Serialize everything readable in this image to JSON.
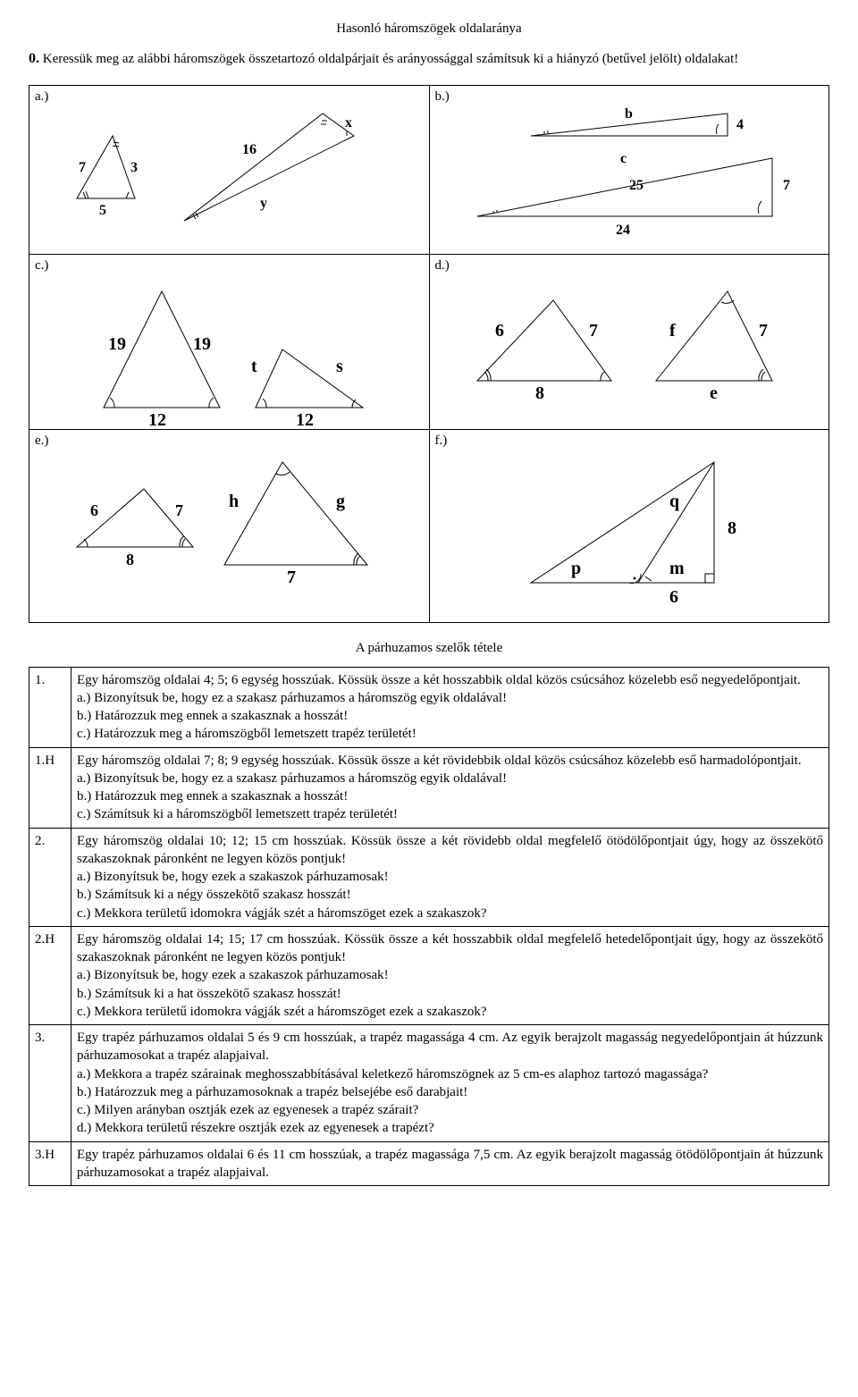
{
  "title": "Hasonló háromszögek oldalaránya",
  "intro_num": "0.",
  "intro": "Keressük meg az alábbi háromszögek összetartozó oldalpárjait és arányossággal számítsuk ki a hiányzó (betűvel jelölt) oldalakat!",
  "labels": {
    "a": "a.)",
    "b": "b.)",
    "c": "c.)",
    "d": "d.)",
    "e": "e.)",
    "f": "f.)"
  },
  "fig_a": {
    "s1_left": "7",
    "s1_right": "3",
    "s1_base": "5",
    "s2_top": "16",
    "s2_right": "x",
    "s2_bottom": "y"
  },
  "fig_b": {
    "top_b": "b",
    "top_4": "4",
    "mid_c": "c",
    "mid_25": "25",
    "bot_7": "7",
    "bot_24": "24"
  },
  "fig_c": {
    "left_l": "19",
    "left_r": "19",
    "left_base": "12",
    "right_t": "t",
    "right_s": "s",
    "right_base": "12"
  },
  "fig_d": {
    "l6": "6",
    "l7": "7",
    "l8": "8",
    "rf": "f",
    "r7": "7",
    "re": "e"
  },
  "fig_e": {
    "l6": "6",
    "l7": "7",
    "l8": "8",
    "rh": "h",
    "rg": "g",
    "r7": "7"
  },
  "fig_f": {
    "q": "q",
    "eight": "8",
    "p": "p",
    "m": "m",
    "six": "6"
  },
  "section_title": "A párhuzamos szelők tétele",
  "tasks": [
    {
      "nr": "1.",
      "text": "Egy háromszög oldalai 4; 5; 6 egység hosszúak. Kössük össze a két hosszabbik oldal közös csúcsához közelebb eső negyedelőpontjait.\na.) Bizonyítsuk be, hogy ez a szakasz párhuzamos a háromszög egyik oldalával!\nb.) Határozzuk meg ennek a szakasznak a hosszát!\nc.) Határozzuk meg a háromszögből lemetszett trapéz területét!"
    },
    {
      "nr": "1.H",
      "text": "Egy háromszög oldalai 7; 8; 9 egység hosszúak. Kössük össze a két rövidebbik oldal közös csúcsához közelebb eső harmadolópontjait.\na.) Bizonyítsuk be, hogy ez a szakasz párhuzamos a háromszög egyik oldalával!\nb.) Határozzuk meg ennek a szakasznak a hosszát!\nc.) Számítsuk ki a háromszögből lemetszett trapéz területét!"
    },
    {
      "nr": "2.",
      "text": "Egy háromszög oldalai 10; 12; 15 cm hosszúak. Kössük össze a két rövidebb oldal megfelelő ötödölőpontjait úgy, hogy az összekötő szakaszoknak páronként ne legyen közös pontjuk!\na.) Bizonyítsuk be, hogy ezek a szakaszok párhuzamosak!\nb.) Számítsuk ki a négy összekötő szakasz hosszát!\nc.) Mekkora területű idomokra vágják szét a háromszöget ezek a szakaszok?"
    },
    {
      "nr": "2.H",
      "text": "Egy háromszög oldalai 14; 15; 17 cm hosszúak. Kössük össze a két hosszabbik oldal megfelelő hetedelőpontjait úgy, hogy az összekötő szakaszoknak páronként ne legyen közös pontjuk!\na.) Bizonyítsuk be, hogy ezek a szakaszok párhuzamosak!\nb.) Számítsuk ki a hat összekötő szakasz hosszát!\nc.) Mekkora területű idomokra vágják szét a háromszöget ezek a szakaszok?"
    },
    {
      "nr": "3.",
      "text": "Egy trapéz párhuzamos oldalai 5 és 9 cm hosszúak, a trapéz magassága 4 cm. Az egyik berajzolt magasság negyedelőpontjain át húzzunk párhuzamosokat a trapéz alapjaival.\na.) Mekkora a trapéz szárainak meghosszabbításával keletkező háromszögnek az 5 cm-es alaphoz tartozó magassága?\nb.) Határozzuk meg a párhuzamosoknak a trapéz belsejébe eső darabjait!\nc.) Milyen arányban osztják ezek az egyenesek a trapéz szárait?\nd.) Mekkora területű részekre osztják ezek az egyenesek a trapézt?"
    },
    {
      "nr": "3.H",
      "text": "Egy trapéz párhuzamos oldalai 6 és 11 cm hosszúak, a trapéz magassága 7,5 cm. Az egyik berajzolt magasság ötödölőpontjain át húzzunk párhuzamosokat a trapéz alapjaival."
    }
  ]
}
